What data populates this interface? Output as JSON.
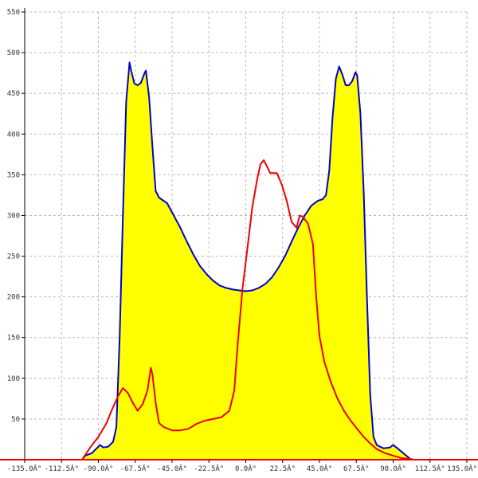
{
  "chart_data": {
    "type": "area",
    "title": "",
    "xlabel": "",
    "ylabel": "",
    "xlim": [
      -135,
      135
    ],
    "ylim": [
      0,
      550
    ],
    "x_ticks": [
      -135,
      -112.5,
      -90,
      -67.5,
      -45,
      -22.5,
      0,
      22.5,
      45,
      67.5,
      90,
      112.5,
      135
    ],
    "x_tick_labels": [
      "-135.0Â°",
      "-112.5Â°",
      "-90.0Â°",
      "-67.5Â°",
      "-45.0Â°",
      "-22.5Â°",
      "0.0Â°",
      "22.5Â°",
      "45.0Â°",
      "67.5Â°",
      "90.0Â°",
      "112.5Â°",
      "135.0Â°"
    ],
    "y_ticks": [
      50,
      100,
      150,
      200,
      250,
      300,
      350,
      400,
      450,
      500,
      550
    ],
    "y_tick_labels": [
      "50",
      "100",
      "150",
      "200",
      "250",
      "300",
      "350",
      "400",
      "450",
      "500",
      "550"
    ],
    "grid": true,
    "colors": {
      "fill": "#ffff00",
      "series_1": "#0000cc",
      "series_2": "#ee0000",
      "axis": "#000000",
      "grid": "#bbbbbb",
      "baseline": "#ee0000"
    },
    "series": [
      {
        "color": "#0000cc",
        "filled": true,
        "points": [
          [
            -100,
            0
          ],
          [
            -98,
            5
          ],
          [
            -94,
            8
          ],
          [
            -92,
            12
          ],
          [
            -89,
            18
          ],
          [
            -87,
            15
          ],
          [
            -84,
            16
          ],
          [
            -81,
            22
          ],
          [
            -79,
            40
          ],
          [
            -77,
            150
          ],
          [
            -75,
            300
          ],
          [
            -73,
            440
          ],
          [
            -71,
            488
          ],
          [
            -70,
            478
          ],
          [
            -68,
            462
          ],
          [
            -66,
            460
          ],
          [
            -64,
            463
          ],
          [
            -62,
            474
          ],
          [
            -61,
            478
          ],
          [
            -59,
            445
          ],
          [
            -57,
            385
          ],
          [
            -55,
            330
          ],
          [
            -53,
            322
          ],
          [
            -48,
            315
          ],
          [
            -44,
            300
          ],
          [
            -40,
            285
          ],
          [
            -36,
            268
          ],
          [
            -32,
            252
          ],
          [
            -28,
            238
          ],
          [
            -24,
            228
          ],
          [
            -20,
            220
          ],
          [
            -16,
            214
          ],
          [
            -12,
            211
          ],
          [
            -8,
            209
          ],
          [
            -4,
            208
          ],
          [
            0,
            207
          ],
          [
            4,
            208
          ],
          [
            8,
            211
          ],
          [
            12,
            216
          ],
          [
            16,
            224
          ],
          [
            20,
            236
          ],
          [
            24,
            250
          ],
          [
            28,
            268
          ],
          [
            32,
            285
          ],
          [
            36,
            300
          ],
          [
            40,
            312
          ],
          [
            44,
            318
          ],
          [
            47,
            320
          ],
          [
            49,
            325
          ],
          [
            51,
            355
          ],
          [
            53,
            420
          ],
          [
            55,
            468
          ],
          [
            57,
            483
          ],
          [
            59,
            473
          ],
          [
            61,
            460
          ],
          [
            63,
            460
          ],
          [
            65,
            465
          ],
          [
            67,
            476
          ],
          [
            68,
            472
          ],
          [
            70,
            425
          ],
          [
            72,
            330
          ],
          [
            74,
            200
          ],
          [
            76,
            80
          ],
          [
            78,
            28
          ],
          [
            80,
            18
          ],
          [
            84,
            14
          ],
          [
            88,
            15
          ],
          [
            90,
            18
          ],
          [
            92,
            15
          ],
          [
            95,
            10
          ],
          [
            98,
            5
          ],
          [
            101,
            0
          ]
        ]
      },
      {
        "color": "#ee0000",
        "filled": false,
        "points": [
          [
            -100,
            0
          ],
          [
            -95,
            15
          ],
          [
            -90,
            28
          ],
          [
            -85,
            45
          ],
          [
            -82,
            60
          ],
          [
            -78,
            78
          ],
          [
            -75,
            88
          ],
          [
            -72,
            82
          ],
          [
            -69,
            70
          ],
          [
            -66,
            60
          ],
          [
            -63,
            68
          ],
          [
            -60,
            85
          ],
          [
            -58,
            113
          ],
          [
            -57,
            105
          ],
          [
            -55,
            70
          ],
          [
            -53,
            45
          ],
          [
            -50,
            40
          ],
          [
            -45,
            36
          ],
          [
            -40,
            36
          ],
          [
            -35,
            38
          ],
          [
            -30,
            44
          ],
          [
            -25,
            48
          ],
          [
            -20,
            50
          ],
          [
            -15,
            52
          ],
          [
            -10,
            60
          ],
          [
            -7,
            85
          ],
          [
            -5,
            140
          ],
          [
            -2,
            210
          ],
          [
            1,
            260
          ],
          [
            4,
            310
          ],
          [
            7,
            345
          ],
          [
            9,
            363
          ],
          [
            11,
            368
          ],
          [
            13,
            360
          ],
          [
            15,
            352
          ],
          [
            19,
            352
          ],
          [
            22,
            338
          ],
          [
            25,
            318
          ],
          [
            28,
            292
          ],
          [
            31,
            285
          ],
          [
            33,
            300
          ],
          [
            35,
            298
          ],
          [
            38,
            290
          ],
          [
            41,
            265
          ],
          [
            43,
            200
          ],
          [
            45,
            152
          ],
          [
            48,
            120
          ],
          [
            52,
            95
          ],
          [
            56,
            75
          ],
          [
            60,
            60
          ],
          [
            64,
            48
          ],
          [
            68,
            38
          ],
          [
            72,
            28
          ],
          [
            76,
            20
          ],
          [
            80,
            13
          ],
          [
            85,
            8
          ],
          [
            90,
            5
          ],
          [
            95,
            2
          ],
          [
            100,
            1
          ],
          [
            103,
            0
          ]
        ]
      }
    ]
  }
}
